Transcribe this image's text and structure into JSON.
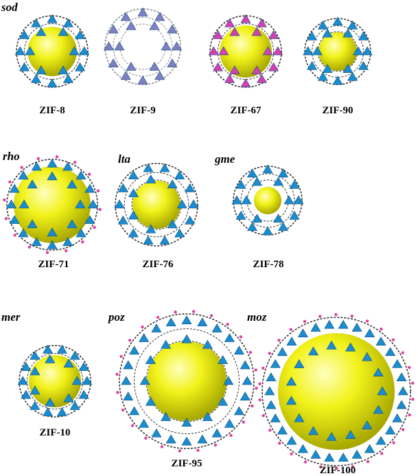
{
  "groups": [
    {
      "topology": "sod",
      "structures": [
        "ZIF-8",
        "ZIF-9",
        "ZIF-67",
        "ZIF-90"
      ]
    },
    {
      "topology": "rho",
      "structures": [
        "ZIF-71"
      ]
    },
    {
      "topology": "lta",
      "structures": [
        "ZIF-76"
      ]
    },
    {
      "topology": "gme",
      "structures": [
        "ZIF-78"
      ]
    },
    {
      "topology": "mer",
      "structures": [
        "ZIF-10"
      ]
    },
    {
      "topology": "poz",
      "structures": [
        "ZIF-95"
      ]
    },
    {
      "topology": "moz",
      "structures": [
        "ZIF-100"
      ]
    }
  ]
}
